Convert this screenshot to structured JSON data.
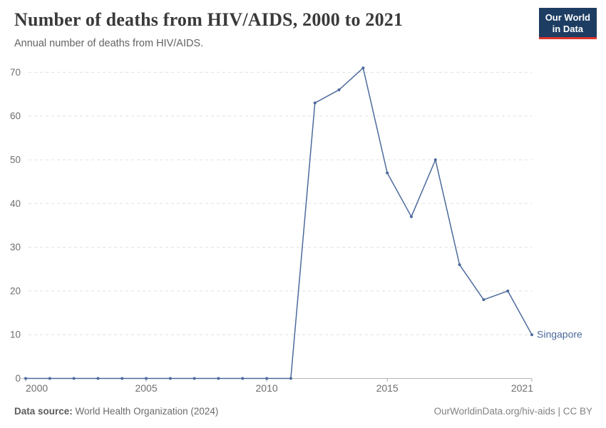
{
  "header": {
    "title": "Number of deaths from HIV/AIDS, 2000 to 2021",
    "subtitle": "Annual number of deaths from HIV/AIDS.",
    "logo": {
      "line1": "Our World",
      "line2": "in Data"
    }
  },
  "chart_data": {
    "type": "line",
    "title": "Number of deaths from HIV/AIDS, 2000 to 2021",
    "subtitle": "Annual number of deaths from HIV/AIDS.",
    "entity": "Singapore",
    "x": [
      2000,
      2001,
      2002,
      2003,
      2004,
      2005,
      2006,
      2007,
      2008,
      2009,
      2010,
      2011,
      2012,
      2013,
      2014,
      2015,
      2016,
      2017,
      2018,
      2019,
      2020,
      2021
    ],
    "series": [
      {
        "name": "Singapore",
        "color": "#4C6A9C",
        "values": [
          0,
          0,
          0,
          0,
          0,
          0,
          0,
          0,
          0,
          0,
          0,
          0,
          63,
          66,
          71,
          47,
          37,
          50,
          26,
          18,
          20,
          10
        ]
      }
    ],
    "xticks": [
      2000,
      2005,
      2010,
      2015,
      2021
    ],
    "yticks": [
      0,
      10,
      20,
      30,
      40,
      50,
      60,
      70
    ],
    "ylim": [
      0,
      72
    ],
    "xlabel": "",
    "ylabel": "",
    "grid": "horizontal-dashed",
    "legend_position": "end-of-line",
    "marker": "point"
  },
  "footer": {
    "datasource_label": "Data source:",
    "datasource_value": " World Health Organization (2024)",
    "credit": "OurWorldinData.org/hiv-aids | CC BY"
  },
  "colors": {
    "line": "#4C6A9C",
    "grid": "#e0e0e0",
    "axis": "#b5b5b5",
    "tick_text": "#6e6e6e",
    "title_text": "#3a3a3a",
    "subtitle_text": "#636363",
    "logo_bg": "#1d3d63",
    "logo_stripe": "#dc352c"
  }
}
